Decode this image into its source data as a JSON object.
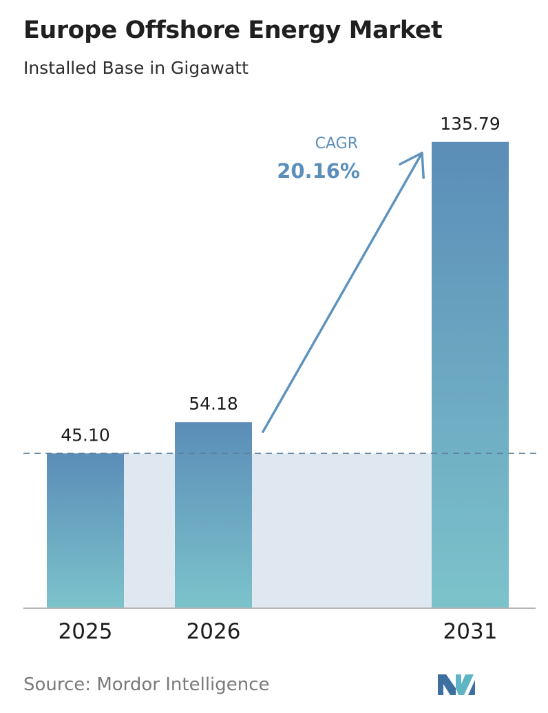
{
  "header": {
    "title": "Europe Offshore Energy Market",
    "subtitle": "Installed Base in Gigawatt"
  },
  "chart_data": {
    "type": "bar",
    "categories": [
      "2025",
      "2026",
      "2031"
    ],
    "values": [
      45.1,
      54.18,
      135.79
    ],
    "value_labels": [
      "45.10",
      "54.18",
      "135.79"
    ],
    "ylim": [
      0,
      150
    ],
    "grid": false,
    "reference_line": {
      "style": "dashed",
      "value": 45.1
    },
    "annotation": {
      "label": "CAGR",
      "value": "20.16%",
      "from": "2026",
      "to": "2031"
    },
    "colors": {
      "bar_top": "#5b8db8",
      "bar_bottom": "#7cc3cb",
      "band": "#dfe8f1",
      "accent_text": "#5b8fba",
      "arrow": "#5f93be",
      "axis": "#b5b5b5",
      "reference_line": "#5d7f99"
    }
  },
  "footer": {
    "source": "Source:  Mordor Intelligence",
    "logo_icon": "mordor-intelligence-logo-icon"
  }
}
